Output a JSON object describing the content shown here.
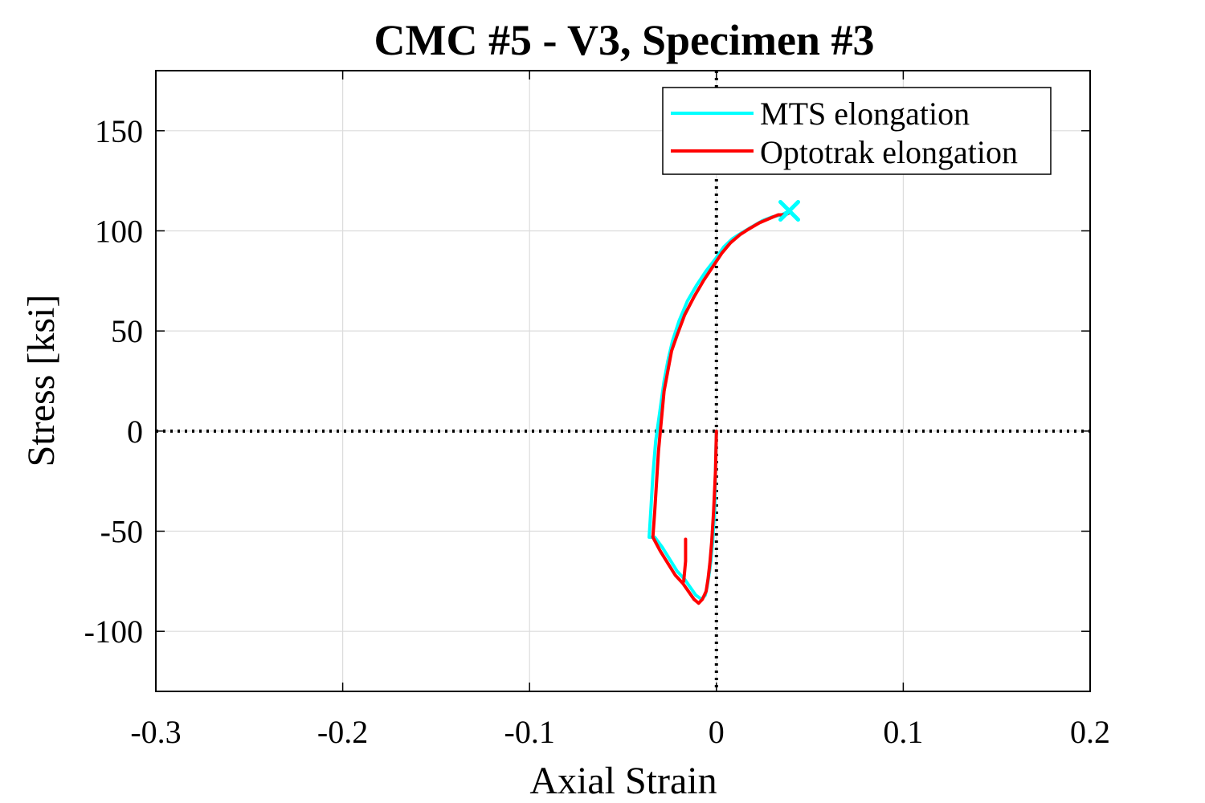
{
  "chart_data": {
    "type": "line",
    "title": "CMC #5 - V3, Specimen #3",
    "xlabel": "Axial Strain",
    "ylabel": "Stress [ksi]",
    "xlim": [
      -0.3,
      0.2
    ],
    "ylim": [
      -130,
      180
    ],
    "xticks": [
      -0.3,
      -0.2,
      -0.1,
      0,
      0.1,
      0.2
    ],
    "xtick_labels": [
      "-0.3",
      "-0.2",
      "-0.1",
      "0",
      "0.1",
      "0.2"
    ],
    "yticks": [
      -100,
      -50,
      0,
      50,
      100,
      150
    ],
    "ytick_labels": [
      "-100",
      "-50",
      "0",
      "50",
      "100",
      "150"
    ],
    "grid": true,
    "legend_position": "top-right",
    "reference_lines": {
      "x": 0,
      "y": 0,
      "style": "dotted"
    },
    "series": [
      {
        "name": "MTS elongation",
        "color": "#00FFFF",
        "x": [
          0,
          -0.0005,
          -0.001,
          -0.002,
          -0.003,
          -0.004,
          -0.005,
          -0.006,
          -0.008,
          -0.011,
          -0.014,
          -0.017,
          -0.021,
          -0.025,
          -0.029,
          -0.033,
          -0.036,
          -0.035,
          -0.034,
          -0.0325,
          -0.031,
          -0.0295,
          -0.028,
          -0.026,
          -0.0235,
          -0.02,
          -0.0155,
          -0.0105,
          -0.0055,
          -0.0005,
          0.004,
          0.0085,
          0.0135,
          0.019,
          0.0245,
          0.03,
          0.035,
          0.039
        ],
        "y": [
          0,
          -20,
          -40,
          -55,
          -65,
          -72,
          -78,
          -82,
          -84,
          -82,
          -78,
          -74,
          -70,
          -64,
          -58,
          -53,
          -53,
          -38,
          -22,
          -5,
          5,
          15,
          25,
          35,
          45,
          55,
          65,
          73,
          80,
          86,
          92,
          96,
          99,
          102,
          105,
          107,
          108,
          110
        ]
      },
      {
        "name": "Optotrak elongation",
        "color": "#FF0000",
        "x": [
          0,
          -0.0005,
          -0.0015,
          -0.0025,
          -0.0035,
          -0.0045,
          -0.0055,
          -0.0075,
          -0.0095,
          -0.012,
          -0.015,
          -0.018,
          -0.022,
          -0.026,
          -0.03,
          -0.034,
          -0.033,
          -0.032,
          -0.031,
          -0.03,
          -0.029,
          -0.028,
          -0.026,
          -0.024,
          -0.021,
          -0.017,
          -0.012,
          -0.007,
          -0.002,
          0.003,
          0.0075,
          0.0125,
          0.0175,
          0.023,
          0.028,
          0.033,
          0.037,
          0.039
        ],
        "y": [
          0,
          -20,
          -40,
          -55,
          -66,
          -74,
          -80,
          -84,
          -86,
          -84,
          -80,
          -76,
          -72,
          -66,
          -60,
          -53,
          -40,
          -25,
          -10,
          0,
          10,
          20,
          30,
          40,
          48,
          58,
          67,
          75,
          82,
          89,
          94,
          98,
          101,
          104,
          106,
          108,
          108,
          109
        ],
        "x_tail": [
          -0.0175,
          -0.0165,
          -0.0165
        ],
        "y_tail": [
          -75,
          -65,
          -54
        ]
      }
    ],
    "markers": [
      {
        "x": 0.039,
        "y": 110,
        "symbol": "x",
        "color": "#00FFFF"
      }
    ]
  }
}
